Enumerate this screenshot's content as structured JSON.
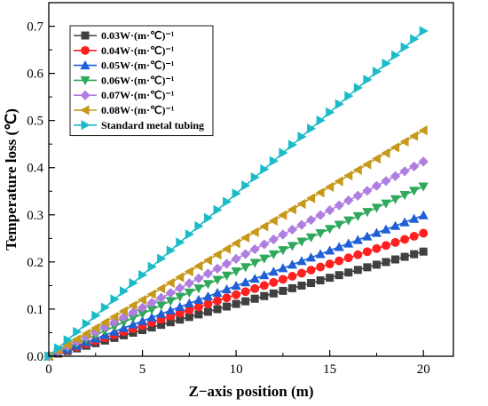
{
  "chart_data": {
    "type": "line",
    "title": "",
    "xlabel": "Z−axis position (m)",
    "ylabel": "Temperature loss (℃)",
    "xlim": [
      0,
      21.6
    ],
    "ylim": [
      0,
      0.75
    ],
    "xticks": [
      0,
      5,
      10,
      15,
      20
    ],
    "yticks": [
      0.0,
      0.1,
      0.2,
      0.3,
      0.4,
      0.5,
      0.6,
      0.7
    ],
    "xtick_labels": [
      "0",
      "5",
      "10",
      "15",
      "20"
    ],
    "ytick_labels": [
      "0.0",
      "0.1",
      "0.2",
      "0.3",
      "0.4",
      "0.5",
      "0.6",
      "0.7"
    ],
    "x_step": 0.5,
    "x_max": 20,
    "grid": false,
    "legend_position": "top-left",
    "series": [
      {
        "name": "0.03W·(m·℃)⁻¹",
        "end_value": 0.222,
        "color": "#404040",
        "marker": "square"
      },
      {
        "name": "0.04W·(m·℃)⁻¹",
        "end_value": 0.261,
        "color": "#ff2020",
        "marker": "circle"
      },
      {
        "name": "0.05W·(m·℃)⁻¹",
        "end_value": 0.299,
        "color": "#1f5fd6",
        "marker": "triangle-up"
      },
      {
        "name": "0.06W·(m·℃)⁻¹",
        "end_value": 0.36,
        "color": "#2ea85a",
        "marker": "triangle-down"
      },
      {
        "name": "0.07W·(m·℃)⁻¹",
        "end_value": 0.413,
        "color": "#b07ee0",
        "marker": "diamond"
      },
      {
        "name": "0.08W·(m·℃)⁻¹",
        "end_value": 0.479,
        "color": "#c7991a",
        "marker": "triangle-left"
      },
      {
        "name": "Standard metal tubing",
        "end_value": 0.69,
        "color": "#1bbcc8",
        "marker": "triangle-right"
      }
    ]
  }
}
